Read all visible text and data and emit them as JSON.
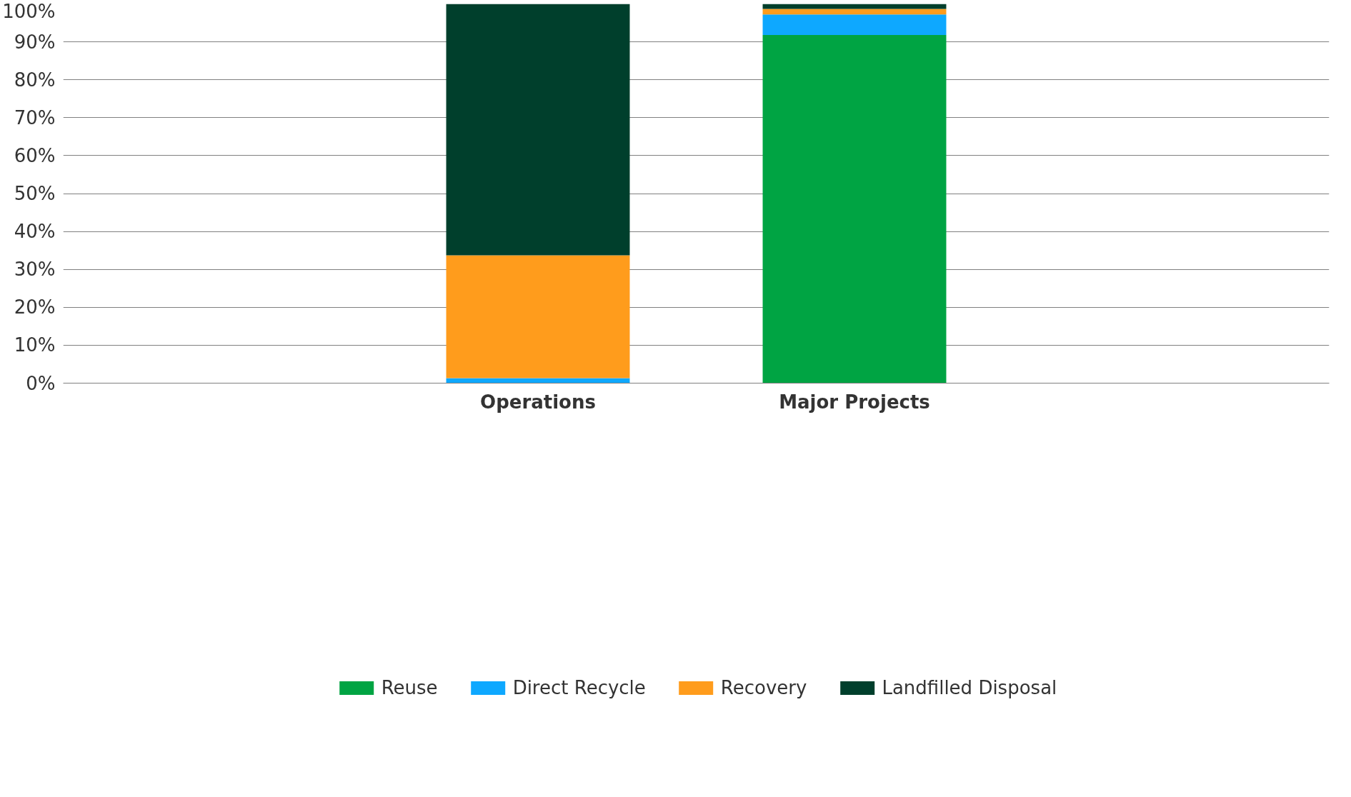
{
  "chart_data": {
    "type": "bar",
    "stacked": true,
    "categories": [
      "Operations",
      "Major Projects"
    ],
    "series": [
      {
        "name": "Reuse",
        "color": "#00a443",
        "values": [
          0,
          91.8
        ]
      },
      {
        "name": "Direct Recycle",
        "color": "#0ea8ff",
        "values": [
          1.3,
          5.4
        ]
      },
      {
        "name": "Recovery",
        "color": "#ff9c1c",
        "values": [
          32.4,
          1.5
        ]
      },
      {
        "name": "Landfilled Disposal",
        "color": "#003f2c",
        "values": [
          66.3,
          1.3
        ]
      }
    ],
    "ylim": [
      0,
      100
    ],
    "yticks": [
      {
        "value": 0,
        "label": "0%"
      },
      {
        "value": 10,
        "label": "10%"
      },
      {
        "value": 20,
        "label": "20%"
      },
      {
        "value": 30,
        "label": "30%"
      },
      {
        "value": 40,
        "label": "40%"
      },
      {
        "value": 50,
        "label": "50%"
      },
      {
        "value": 60,
        "label": "60%"
      },
      {
        "value": 70,
        "label": "70%"
      },
      {
        "value": 80,
        "label": "80%"
      },
      {
        "value": 90,
        "label": "90%"
      },
      {
        "value": 100,
        "label": "100%"
      }
    ],
    "grid": "y",
    "legend": "bottom"
  }
}
